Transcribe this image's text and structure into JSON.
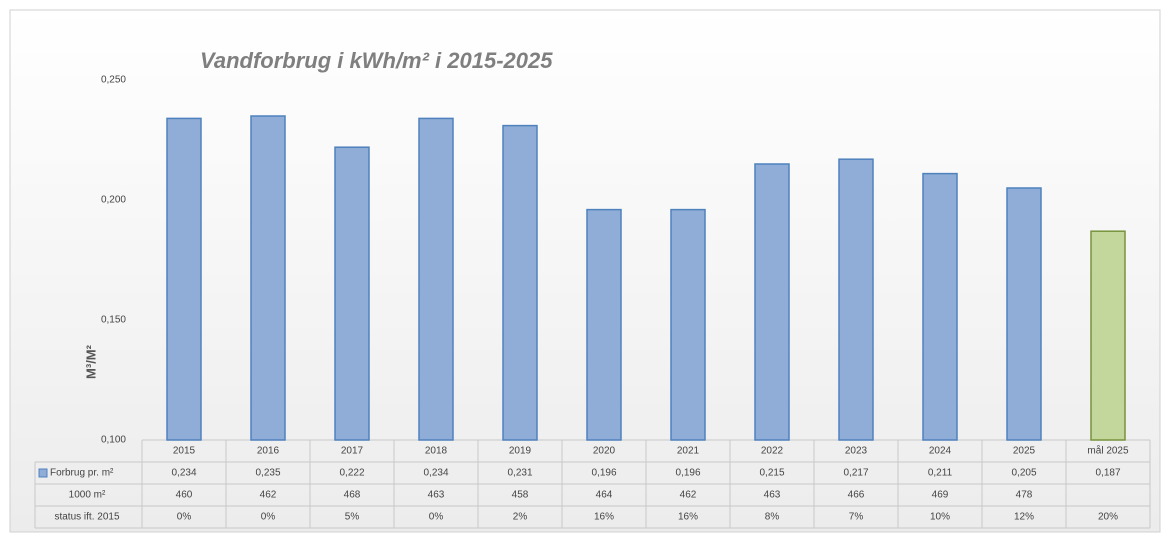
{
  "chart_data": {
    "type": "bar",
    "title": "Vandforbrug  i kWh/m² i 2015-2025",
    "y_label": "M³/M²",
    "categories": [
      "2015",
      "2016",
      "2017",
      "2018",
      "2019",
      "2020",
      "2021",
      "2022",
      "2023",
      "2024",
      "2025",
      "mål 2025"
    ],
    "series_name": "Forbrug pr. m²",
    "values": [
      0.234,
      0.235,
      0.222,
      0.234,
      0.231,
      0.196,
      0.196,
      0.215,
      0.217,
      0.211,
      0.205,
      0.187
    ],
    "value_labels": [
      "0,234",
      "0,235",
      "0,222",
      "0,234",
      "0,231",
      "0,196",
      "0,196",
      "0,215",
      "0,217",
      "0,211",
      "0,205",
      "0,187"
    ],
    "colors": [
      "#8fadd7",
      "#8fadd7",
      "#8fadd7",
      "#8fadd7",
      "#8fadd7",
      "#8fadd7",
      "#8fadd7",
      "#8fadd7",
      "#8fadd7",
      "#8fadd7",
      "#8fadd7",
      "#c3d69b"
    ],
    "ylim": [
      0.1,
      0.25
    ],
    "yticks": [
      {
        "value": 0.1,
        "label": "0,100"
      },
      {
        "value": 0.15,
        "label": "0,150"
      },
      {
        "value": 0.2,
        "label": "0,200"
      },
      {
        "value": 0.25,
        "label": "0,250"
      }
    ],
    "grid": false,
    "table_rows": [
      {
        "label": "1000 m²",
        "values": [
          460,
          462,
          468,
          463,
          458,
          464,
          462,
          463,
          466,
          469,
          478,
          null
        ]
      },
      {
        "label": "status ift. 2015",
        "values": [
          "0%",
          "0%",
          "5%",
          "0%",
          "2%",
          "16%",
          "16%",
          "8%",
          "7%",
          "10%",
          "12%",
          "20%"
        ]
      }
    ]
  }
}
